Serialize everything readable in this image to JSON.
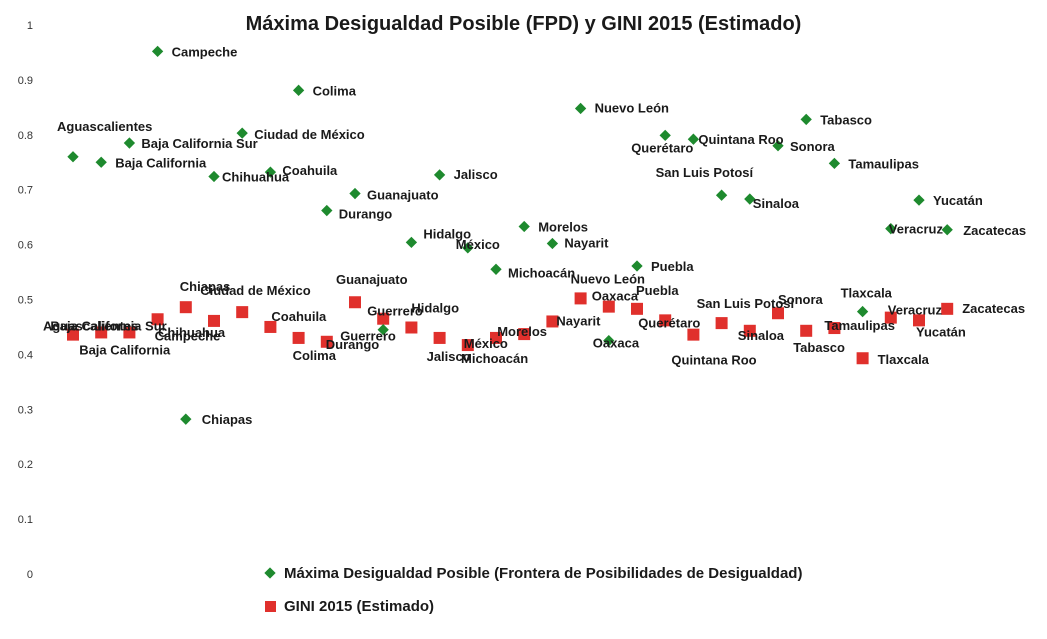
{
  "chart_data": {
    "type": "scatter",
    "title": "Máxima Desigualdad Posible (FPD) y GINI 2015 (Estimado)",
    "xlabel": "",
    "ylabel": "",
    "ylim": [
      0,
      1
    ],
    "y_ticks": [
      "0",
      "0.1",
      "0.2",
      "0.3",
      "0.4",
      "0.5",
      "0.6",
      "0.7",
      "0.8",
      "0.9",
      "1"
    ],
    "categories": [
      "Aguascalientes",
      "Baja California",
      "Baja California Sur",
      "Campeche",
      "Chiapas",
      "Chihuahua",
      "Ciudad de México",
      "Coahuila",
      "Colima",
      "Durango",
      "Guanajuato",
      "Guerrero",
      "Hidalgo",
      "Jalisco",
      "México",
      "Michoacán",
      "Morelos",
      "Nayarit",
      "Nuevo León",
      "Oaxaca",
      "Puebla",
      "Querétaro",
      "Quintana Roo",
      "San Luis Potosí",
      "Sinaloa",
      "Sonora",
      "Tabasco",
      "Tamaulipas",
      "Tlaxcala",
      "Veracruz",
      "Yucatán",
      "Zacatecas"
    ],
    "series": [
      {
        "name": "Máxima Desigualdad Posible (Frontera de Posibilidades de Desigualdad)",
        "color": "#1e8a2e",
        "marker": "diamond",
        "values": [
          0.76,
          0.75,
          0.785,
          0.952,
          0.282,
          0.724,
          0.803,
          0.732,
          0.881,
          0.662,
          0.693,
          0.445,
          0.604,
          0.727,
          0.594,
          0.555,
          0.633,
          0.602,
          0.848,
          0.425,
          0.561,
          0.799,
          0.792,
          0.69,
          0.683,
          0.78,
          0.828,
          0.748,
          0.478,
          0.629,
          0.681,
          0.627
        ]
      },
      {
        "name": "GINI 2015 (Estimado)",
        "color": "#e0302c",
        "marker": "square",
        "values": [
          0.436,
          0.44,
          0.44,
          0.464,
          0.486,
          0.461,
          0.477,
          0.45,
          0.43,
          0.423,
          0.495,
          0.465,
          0.449,
          0.43,
          0.417,
          0.43,
          0.437,
          0.46,
          0.502,
          0.487,
          0.483,
          0.462,
          0.436,
          0.457,
          0.443,
          0.475,
          0.443,
          0.448,
          0.393,
          0.467,
          0.462,
          0.483
        ]
      }
    ],
    "point_labels": {
      "fpd": [
        "Aguascalientes",
        "Baja California",
        "Baja California Sur",
        "Campeche",
        "Chiapas",
        "Chihuahua",
        "Ciudad de México",
        "Coahuila",
        "Colima",
        "Durango",
        "Guanajuato",
        "Guerrero",
        "Hidalgo",
        "Jalisco",
        "México",
        "Michoacán",
        "Morelos",
        "Nayarit",
        "Nuevo León",
        "Oaxaca",
        "Puebla",
        "Querétaro",
        "Quintana Roo",
        "San Luis Potosí",
        "Sinaloa",
        "Sonora",
        "Tabasco",
        "Tamaulipas",
        "Tlaxcala",
        "Veracruz",
        "Yucatán",
        "Zacatecas"
      ],
      "gini": [
        "Aguascalientes",
        "Baja California",
        "Baja California Sur",
        "Campeche",
        "Chiapas",
        "Chihuahua",
        "Ciudad de México",
        "Coahuila",
        "Colima",
        "Durango",
        "Guanajuato",
        "Guerrero",
        "Hidalgo",
        "Jalisco",
        "México",
        "Michoacán",
        "Morelos",
        "Nayarit",
        "Nuevo León",
        "Oaxaca",
        "Puebla",
        "Querétaro",
        "Quintana Roo",
        "San Luis Potosí",
        "Sinaloa",
        "Sonora",
        "Tabasco",
        "Tamaulipas",
        "Tlaxcala",
        "Veracruz",
        "Yucatán",
        "Zacatecas"
      ]
    },
    "grid": false,
    "legend_position": "bottom"
  },
  "legend": {
    "fpd_label": "Máxima Desigualdad Posible (Frontera de Posibilidades de Desigualdad)",
    "gini_label": "GINI 2015 (Estimado)"
  }
}
